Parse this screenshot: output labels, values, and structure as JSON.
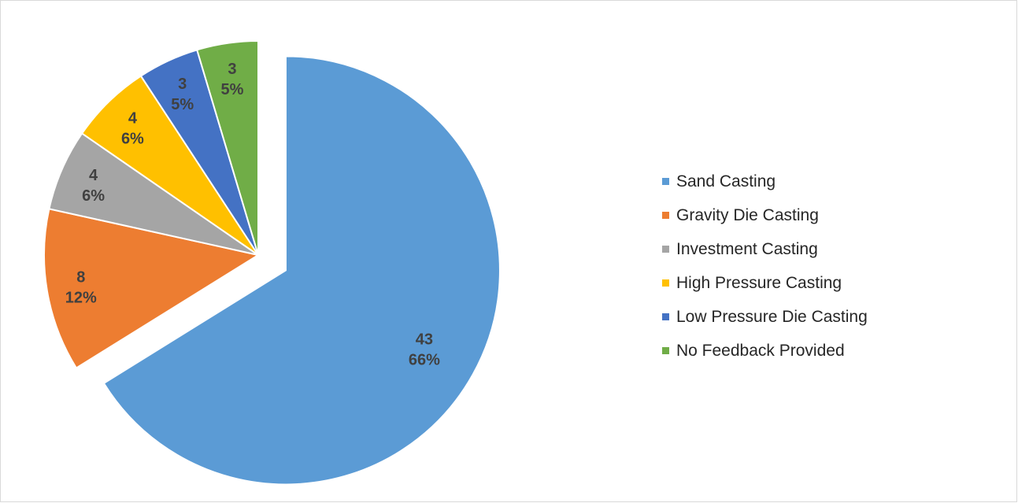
{
  "chart_data": {
    "type": "pie",
    "exploded_slice": "Sand Casting",
    "legend_position": "right",
    "slices": [
      {
        "label": "Sand Casting",
        "value": 43,
        "percent_label": "66%",
        "color": "#5B9BD5"
      },
      {
        "label": "Gravity Die Casting",
        "value": 8,
        "percent_label": "12%",
        "color": "#ED7D31"
      },
      {
        "label": "Investment Casting",
        "value": 4,
        "percent_label": "6%",
        "color": "#A5A5A5"
      },
      {
        "label": "High Pressure Casting",
        "value": 4,
        "percent_label": "6%",
        "color": "#FFC000"
      },
      {
        "label": "Low Pressure Die Casting",
        "value": 3,
        "percent_label": "5%",
        "color": "#4472C4"
      },
      {
        "label": "No Feedback Provided",
        "value": 3,
        "percent_label": "5%",
        "color": "#70AD47"
      }
    ]
  }
}
